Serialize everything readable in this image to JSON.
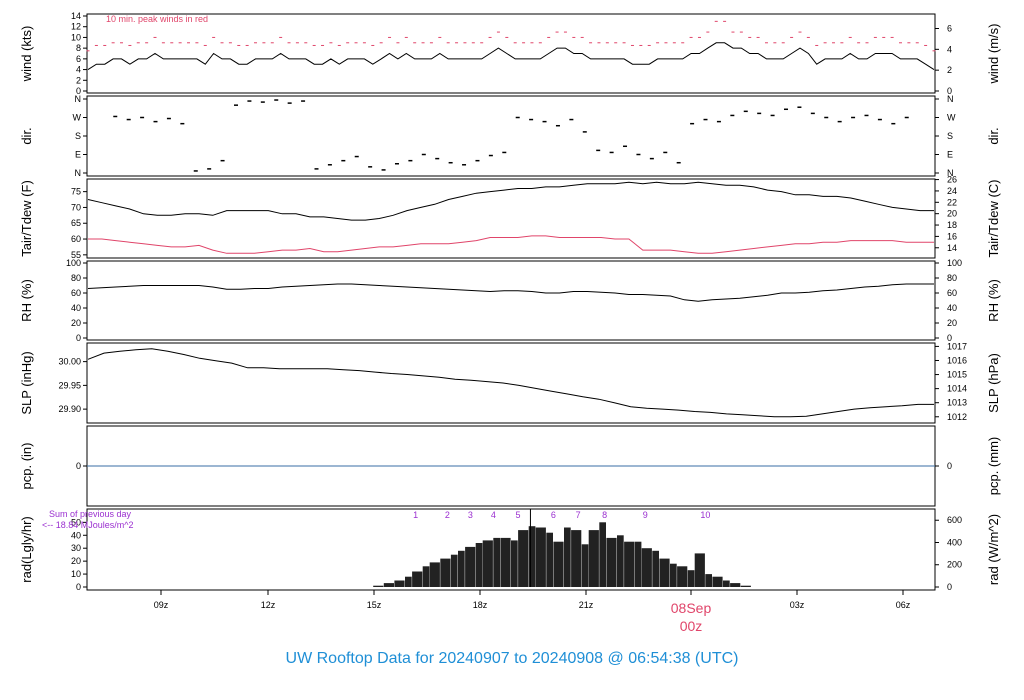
{
  "footer_title": "UW Rooftop Data for 20240907  to  20240908 @ 06:54:38  (UTC)",
  "colors": {
    "title": "#1f8fd6",
    "peak": "#e0456a",
    "rad_marker": "#9b30d0",
    "line": "#000000",
    "precip": "#3a6ea5",
    "date_label": "#e0456a"
  },
  "chart_data": [
    {
      "id": "wind",
      "type": "line",
      "ylabel_left": "wind (kts)",
      "ylabel_right": "wind (m/s)",
      "left_ticks": [
        "0",
        "2",
        "4",
        "6",
        "8",
        "10",
        "12",
        "14"
      ],
      "ylim_left": [
        0,
        14
      ],
      "right_ticks": [
        "0",
        "2",
        "4",
        "6"
      ],
      "ylim_right": [
        0,
        7.2
      ],
      "annotation": "10 min. peak winds in red",
      "series": [
        {
          "values": [
            4,
            5,
            5,
            6,
            6,
            5,
            6,
            6,
            7,
            6,
            6,
            6,
            6,
            6,
            5,
            7,
            6,
            6,
            5,
            5,
            6,
            6,
            6,
            7,
            6,
            6,
            6,
            5,
            5,
            6,
            5,
            6,
            6,
            6,
            5,
            6,
            7,
            6,
            7,
            6,
            6,
            6,
            7,
            6,
            6,
            6,
            6,
            6,
            7,
            8,
            7,
            6,
            6,
            6,
            6,
            7,
            8,
            8,
            7,
            7,
            6,
            6,
            6,
            6,
            6,
            5,
            5,
            5,
            6,
            6,
            6,
            6,
            7,
            7,
            8,
            9,
            9,
            8,
            8,
            7,
            7,
            6,
            6,
            6,
            7,
            8,
            7,
            5,
            6,
            6,
            6,
            7,
            6,
            6,
            7,
            7,
            7,
            6,
            6,
            6,
            5,
            4
          ]
        },
        {
          "values": [
            7.5,
            8.5,
            8.5,
            9,
            9,
            8.5,
            9,
            9,
            10,
            9,
            9,
            9,
            9,
            9,
            8.5,
            10,
            9,
            9,
            8.5,
            8.5,
            9,
            9,
            9,
            10,
            9,
            9,
            9,
            8.5,
            8.5,
            9,
            8.5,
            9,
            9,
            9,
            8.5,
            9,
            10,
            9,
            10,
            9,
            9,
            9,
            10,
            9,
            9,
            9,
            9,
            9,
            10,
            11,
            10,
            9,
            9,
            9,
            9,
            10,
            11,
            11,
            10,
            10,
            9,
            9,
            9,
            9,
            9,
            8.5,
            8.5,
            8.5,
            9,
            9,
            9,
            9,
            10,
            10,
            11,
            13,
            13,
            11,
            11,
            10,
            10,
            9,
            9,
            9,
            10,
            11,
            10,
            8.5,
            9,
            9,
            9,
            10,
            9,
            9,
            10,
            10,
            10,
            9,
            9,
            9,
            8.5,
            7.5
          ]
        }
      ]
    },
    {
      "id": "dir",
      "type": "scatter",
      "ylabel_left": "dir.",
      "ylabel_right": "dir.",
      "left_ticks": [
        "N",
        "E",
        "S",
        "W",
        "N"
      ],
      "right_ticks": [
        "N",
        "E",
        "S",
        "W",
        "N"
      ],
      "ylim": [
        0,
        360
      ],
      "x_hours": [
        0.0,
        0.4,
        0.8,
        1.2,
        1.6,
        2.0,
        2.4,
        2.8,
        3.2,
        3.6,
        4.0,
        4.4,
        4.8,
        5.2,
        5.6,
        6.0,
        6.4,
        6.8,
        7.2,
        7.6,
        8.0,
        8.4,
        8.8,
        9.2,
        9.6,
        10.0,
        10.4,
        10.8,
        11.2,
        11.6,
        12.0,
        12.4,
        12.8,
        13.2,
        13.6,
        14.0,
        14.4,
        14.8,
        15.2,
        15.6,
        16.0,
        16.4,
        16.8,
        17.2,
        17.6,
        18.0,
        18.4,
        18.8,
        19.2,
        19.6,
        20.0,
        20.4,
        20.8,
        21.2,
        21.6,
        22.0,
        22.4,
        22.8,
        23.2,
        23.6
      ],
      "values": [
        275,
        260,
        270,
        250,
        265,
        240,
        10,
        20,
        60,
        330,
        350,
        345,
        355,
        340,
        350,
        20,
        40,
        60,
        80,
        30,
        15,
        45,
        60,
        90,
        70,
        50,
        40,
        60,
        85,
        100,
        270,
        260,
        250,
        230,
        260,
        200,
        110,
        100,
        130,
        90,
        70,
        100,
        50,
        240,
        260,
        250,
        280,
        300,
        290,
        280,
        310,
        320,
        290,
        270,
        250,
        270,
        280,
        260,
        240,
        270
      ]
    },
    {
      "id": "temp",
      "type": "line",
      "ylabel_left": "Tair/Tdew (F)",
      "ylabel_right": "Tair/Tdew (C)",
      "left_ticks": [
        "55",
        "60",
        "65",
        "70",
        "75"
      ],
      "ylim_left": [
        54,
        79
      ],
      "right_ticks": [
        "14",
        "16",
        "18",
        "20",
        "22",
        "24",
        "26"
      ],
      "ylim_right": [
        12.2,
        26.1
      ],
      "series": [
        {
          "name": "Tair",
          "values": [
            72.5,
            71.5,
            70.5,
            69.5,
            68.0,
            67.5,
            67.5,
            68.0,
            68.0,
            67.5,
            69.0,
            69.0,
            69.0,
            69.0,
            68.0,
            68.0,
            67.0,
            67.0,
            66.5,
            66.0,
            66.0,
            66.5,
            67.5,
            69.0,
            70.0,
            71.0,
            72.5,
            73.5,
            74.5,
            75.0,
            75.5,
            76.0,
            76.0,
            76.5,
            76.5,
            77.0,
            77.5,
            77.5,
            77.5,
            78.0,
            77.5,
            78.0,
            77.5,
            77.5,
            78.0,
            77.5,
            77.0,
            77.0,
            76.5,
            75.5,
            75.0,
            74.0,
            74.0,
            73.5,
            73.5,
            73.0,
            72.0,
            71.0,
            70.0,
            69.5,
            69.0,
            69.0
          ]
        },
        {
          "name": "Tdew",
          "values": [
            60.0,
            60.0,
            59.5,
            59.0,
            58.5,
            58.0,
            57.5,
            57.5,
            58.0,
            56.5,
            55.5,
            55.5,
            55.5,
            56.0,
            56.5,
            56.5,
            57.0,
            56.0,
            56.0,
            56.5,
            57.0,
            57.5,
            57.5,
            58.0,
            58.5,
            58.5,
            58.5,
            59.0,
            59.5,
            60.5,
            60.5,
            60.5,
            61.0,
            61.0,
            60.5,
            60.5,
            60.5,
            60.5,
            60.0,
            60.0,
            56.5,
            56.5,
            56.5,
            56.0,
            55.5,
            55.5,
            56.0,
            56.5,
            57.0,
            57.5,
            58.0,
            58.5,
            58.5,
            59.0,
            59.0,
            59.5,
            59.5,
            59.5,
            59.5,
            59.0,
            59.0,
            59.0
          ]
        }
      ]
    },
    {
      "id": "rh",
      "type": "line",
      "ylabel_left": "RH (%)",
      "ylabel_right": "RH (%)",
      "left_ticks": [
        "0",
        "20",
        "40",
        "60",
        "80",
        "100"
      ],
      "ylim": [
        0,
        100
      ],
      "right_ticks": [
        "0",
        "20",
        "40",
        "60",
        "80",
        "100"
      ],
      "values": [
        66,
        67,
        68,
        69,
        70,
        70,
        70,
        70,
        70,
        68,
        65,
        65,
        66,
        66,
        68,
        69,
        70,
        71,
        72,
        72,
        71,
        70,
        69,
        68,
        67,
        66,
        65,
        64,
        63,
        62,
        63,
        63,
        62,
        60,
        60,
        62,
        62,
        61,
        60,
        58,
        58,
        57,
        56,
        51,
        49,
        51,
        52,
        53,
        55,
        57,
        60,
        60,
        61,
        63,
        64,
        66,
        68,
        69,
        71,
        72,
        72,
        72
      ]
    },
    {
      "id": "slp",
      "type": "line",
      "ylabel_left": "SLP (inHg)",
      "ylabel_right": "SLP (hPa)",
      "left_ticks": [
        "29.90",
        "29.95",
        "30.00"
      ],
      "ylim_left": [
        29.875,
        30.035
      ],
      "right_ticks": [
        "1012",
        "1013",
        "1014",
        "1015",
        "1016",
        "1017"
      ],
      "ylim_right": [
        1011.7,
        1017.1
      ],
      "values": [
        30.005,
        30.018,
        30.022,
        30.025,
        30.027,
        30.022,
        30.015,
        30.007,
        30.002,
        29.997,
        29.987,
        29.987,
        29.985,
        29.985,
        29.985,
        29.985,
        29.983,
        29.981,
        29.978,
        29.975,
        29.973,
        29.97,
        29.967,
        29.963,
        29.961,
        29.958,
        29.955,
        29.95,
        29.944,
        29.938,
        29.932,
        29.926,
        29.921,
        29.913,
        29.905,
        29.902,
        29.9,
        29.898,
        29.895,
        29.893,
        29.89,
        29.888,
        29.886,
        29.884,
        29.884,
        29.885,
        29.89,
        29.895,
        29.9,
        29.903,
        29.905,
        29.907,
        29.91,
        29.91
      ]
    },
    {
      "id": "pcp",
      "type": "line",
      "ylabel_left": "pcp. (in)",
      "ylabel_right": "pcp. (mm)",
      "left_ticks": [
        "0"
      ],
      "right_ticks": [
        "0"
      ],
      "ylim": [
        -1,
        1
      ],
      "values": [
        0,
        0
      ]
    },
    {
      "id": "rad",
      "type": "bar",
      "ylabel_left": "rad(Lgly/hr)",
      "ylabel_right": "rad (W/m^2)",
      "left_ticks": [
        "0",
        "10",
        "20",
        "30",
        "40",
        "50"
      ],
      "ylim_left": [
        0,
        58
      ],
      "right_ticks": [
        "0",
        "200",
        "400",
        "600"
      ],
      "ylim_right": [
        0,
        674
      ],
      "annotation": [
        "Sum of previous day",
        "<-- 18.84 MJoules/m^2"
      ],
      "markers": [
        "1",
        "2",
        "3",
        "4",
        "5",
        "6",
        "7",
        "8",
        "9",
        "10"
      ],
      "x_hours": [
        7.5,
        8.1,
        8.4,
        8.7,
        9.0,
        9.2,
        9.5,
        9.7,
        10.0,
        10.3,
        10.5,
        10.7,
        11.0,
        11.2,
        11.5,
        11.7,
        12.0,
        12.2,
        12.5,
        12.7,
        13.0,
        13.2,
        13.5,
        13.7,
        14.0,
        14.2,
        14.5,
        14.7,
        15.0,
        15.2,
        15.5,
        15.7,
        16.0,
        16.2,
        16.5,
        16.7,
        17.0,
        17.2,
        17.5,
        17.7,
        18.0,
        18.2,
        18.5,
        18.8
      ],
      "values": [
        0,
        1,
        3,
        5,
        8,
        12,
        16,
        19,
        22,
        25,
        28,
        31,
        34,
        36,
        38,
        38,
        36,
        44,
        47,
        46,
        42,
        35,
        46,
        44,
        33,
        44,
        50,
        38,
        40,
        35,
        35,
        30,
        28,
        22,
        18,
        16,
        13,
        26,
        10,
        8,
        5,
        3,
        1,
        0
      ]
    }
  ],
  "x_axis": {
    "ticks": [
      "09z",
      "12z",
      "15z",
      "18z",
      "21z",
      "03z",
      "06z"
    ],
    "date_label": "08Sep",
    "date_sublabel": "00z"
  }
}
